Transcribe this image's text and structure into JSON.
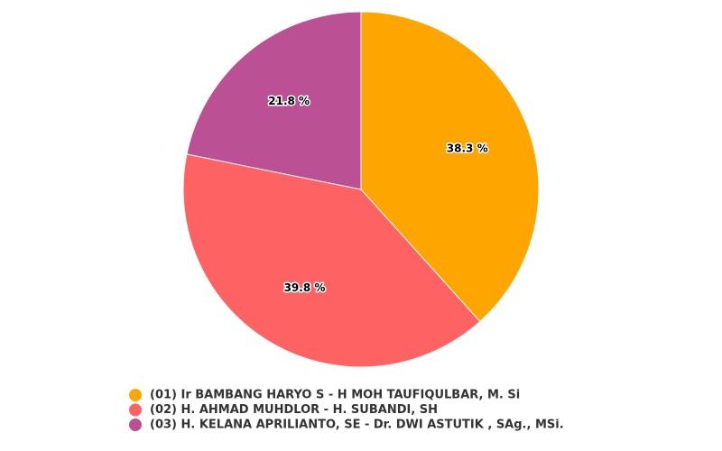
{
  "chart_data": {
    "type": "pie",
    "categories": [
      "(01) Ir BAMBANG HARYO S - H MOH TAUFIQULBAR, M. Si",
      "(02) H. AHMAD MUHDLOR - H. SUBANDI, SH",
      "(03) H. KELANA APRILIANTO, SE - Dr. DWI ASTUTIK , SAg., MSi."
    ],
    "values": [
      38.3,
      39.8,
      21.8
    ],
    "value_labels": [
      "38.3 %",
      "39.8 %",
      "21.8 %"
    ],
    "colors": [
      "#ffa500",
      "#ff6262",
      "#bb5094"
    ],
    "legend": "bottom"
  }
}
